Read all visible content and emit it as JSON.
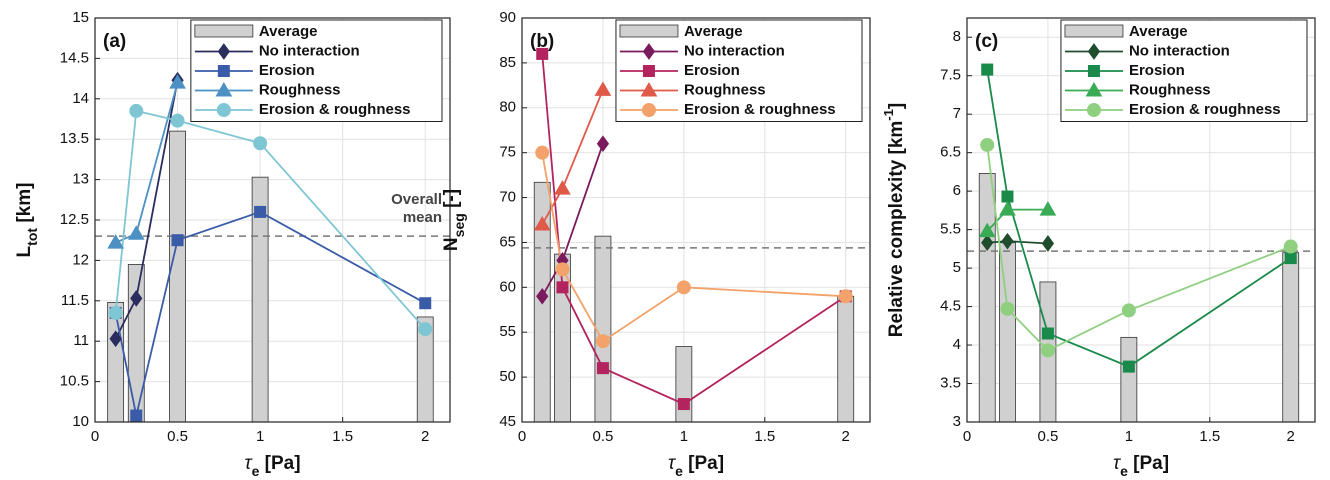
{
  "chart_data": [
    {
      "type": "bar_line",
      "panel_label": "(a)",
      "xlabel": {
        "base": "τ",
        "sub": "e",
        "unit": " [Pa]"
      },
      "ylabel": {
        "base": "L",
        "sub": "tot",
        "unit": " [km]"
      },
      "x": [
        0.125,
        0.25,
        0.5,
        1,
        2
      ],
      "xlim": [
        0,
        2.15
      ],
      "xticks": [
        0,
        0.5,
        1,
        1.5,
        2
      ],
      "ylim": [
        10,
        15
      ],
      "yticks": [
        10,
        10.5,
        11,
        11.5,
        12,
        12.5,
        13,
        13.5,
        14,
        14.5,
        15
      ],
      "grid": true,
      "bars": {
        "name": "Average",
        "color": "#d0d0d0",
        "values": [
          11.48,
          11.95,
          13.6,
          13.03,
          11.3
        ]
      },
      "mean_line": 12.3,
      "annotation": [
        "Overall",
        "mean"
      ],
      "series": [
        {
          "name": "No interaction",
          "color": "#2b2d5e",
          "marker": "diamond",
          "values": [
            11.03,
            11.53,
            14.23,
            null,
            null
          ]
        },
        {
          "name": "Erosion",
          "color": "#3a5ca8",
          "marker": "square",
          "values": [
            11.35,
            10.08,
            12.25,
            12.6,
            11.47
          ]
        },
        {
          "name": "Roughness",
          "color": "#4d90c4",
          "marker": "triangle",
          "values": [
            12.22,
            12.33,
            14.2,
            null,
            null
          ]
        },
        {
          "name": "Erosion & roughness",
          "color": "#7fc6d4",
          "marker": "circle",
          "values": [
            11.35,
            13.85,
            13.73,
            13.45,
            11.15
          ]
        }
      ]
    },
    {
      "type": "bar_line",
      "panel_label": "(b)",
      "xlabel": {
        "base": "τ",
        "sub": "e",
        "unit": " [Pa]"
      },
      "ylabel": {
        "base": "N",
        "sub": "seg",
        "unit": " [-]"
      },
      "x": [
        0.125,
        0.25,
        0.5,
        1,
        2
      ],
      "xlim": [
        0,
        2.15
      ],
      "xticks": [
        0,
        0.5,
        1,
        1.5,
        2
      ],
      "ylim": [
        45,
        90
      ],
      "yticks": [
        45,
        50,
        55,
        60,
        65,
        70,
        75,
        80,
        85,
        90
      ],
      "grid": true,
      "bars": {
        "name": "Average",
        "color": "#d0d0d0",
        "values": [
          71.7,
          63.7,
          65.7,
          53.4,
          59
        ]
      },
      "mean_line": 64.4,
      "series": [
        {
          "name": "No interaction",
          "color": "#7b1b5e",
          "marker": "diamond",
          "values": [
            59,
            63,
            76,
            null,
            null
          ]
        },
        {
          "name": "Erosion",
          "color": "#b3245e",
          "marker": "square",
          "values": [
            86,
            60,
            51,
            47,
            59
          ]
        },
        {
          "name": "Roughness",
          "color": "#e05a4a",
          "marker": "triangle",
          "values": [
            67,
            71,
            82,
            null,
            null
          ]
        },
        {
          "name": "Erosion & roughness",
          "color": "#f2a26a",
          "marker": "circle",
          "values": [
            75,
            62,
            54,
            60,
            59
          ]
        }
      ]
    },
    {
      "type": "bar_line",
      "panel_label": "(c)",
      "xlabel": {
        "base": "τ",
        "sub": "e",
        "unit": " [Pa]"
      },
      "ylabel": {
        "base": "Relative complexity [km",
        "sup": "-1",
        "unit": "]"
      },
      "x": [
        0.125,
        0.25,
        0.5,
        1,
        2
      ],
      "xlim": [
        0,
        2.15
      ],
      "xticks": [
        0,
        0.5,
        1,
        1.5,
        2
      ],
      "ylim": [
        3,
        8.25
      ],
      "yticks": [
        3,
        3.5,
        4,
        4.5,
        5,
        5.5,
        6,
        6.5,
        7,
        7.5,
        8
      ],
      "grid": true,
      "bars": {
        "name": "Average",
        "color": "#d0d0d0",
        "values": [
          6.23,
          5.33,
          4.82,
          4.1,
          5.2
        ]
      },
      "mean_line": 5.22,
      "series": [
        {
          "name": "No interaction",
          "color": "#1f4d2e",
          "marker": "diamond",
          "values": [
            5.33,
            5.35,
            5.32,
            null,
            null
          ]
        },
        {
          "name": "Erosion",
          "color": "#1a8a4a",
          "marker": "square",
          "values": [
            7.58,
            5.93,
            4.15,
            3.72,
            5.13
          ]
        },
        {
          "name": "Roughness",
          "color": "#3aab55",
          "marker": "triangle",
          "values": [
            5.48,
            5.76,
            5.76,
            null,
            null
          ]
        },
        {
          "name": "Erosion & roughness",
          "color": "#8fcf80",
          "marker": "circle",
          "values": [
            6.6,
            4.47,
            3.93,
            4.45,
            5.28
          ]
        }
      ]
    }
  ]
}
